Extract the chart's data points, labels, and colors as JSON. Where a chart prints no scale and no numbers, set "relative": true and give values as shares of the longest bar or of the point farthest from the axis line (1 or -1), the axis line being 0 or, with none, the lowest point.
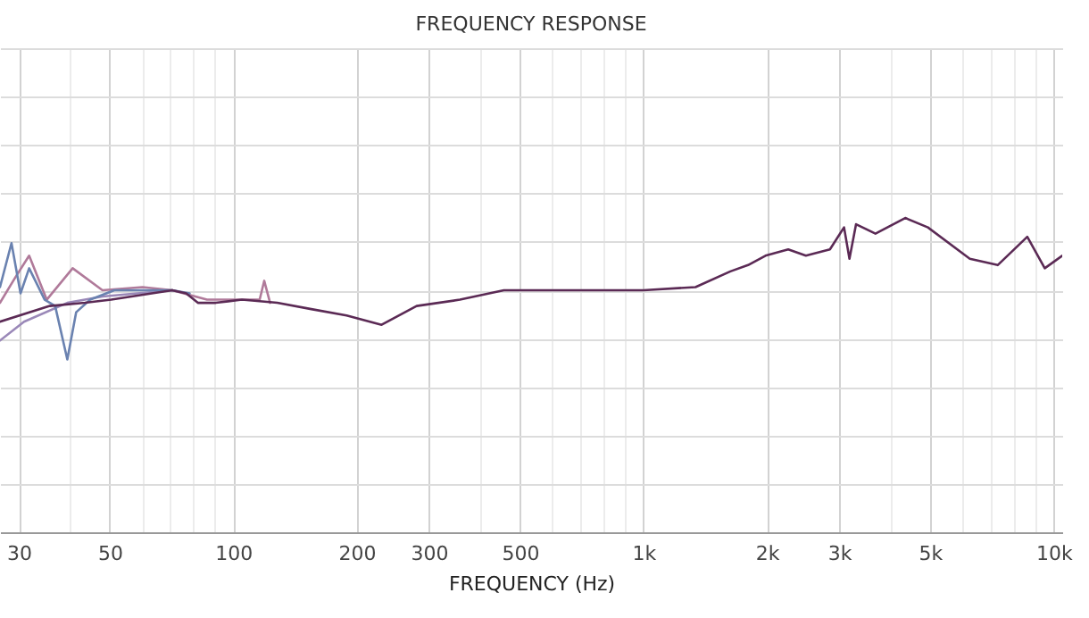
{
  "chart_data": {
    "type": "line",
    "title": "FREQUENCY RESPONSE",
    "xlabel": "FREQUENCY (Hz)",
    "relative": true,
    "log": "x",
    "grid": true,
    "legend": false,
    "xlim": [
      27,
      10500
    ],
    "xticks": [
      30,
      {
        "value": 40,
        "label": null
      },
      50,
      {
        "value": 60,
        "label": null
      },
      {
        "value": 70,
        "label": null
      },
      {
        "value": 80,
        "label": null
      },
      {
        "value": 90,
        "label": null
      },
      100,
      200,
      300,
      {
        "value": 400,
        "label": null
      },
      500,
      {
        "value": 600,
        "label": null
      },
      {
        "value": 700,
        "label": null
      },
      {
        "value": 800,
        "label": null
      },
      {
        "value": 900,
        "label": null
      },
      {
        "value": 1000,
        "label": "1k"
      },
      {
        "value": 2000,
        "label": "2k"
      },
      {
        "value": 3000,
        "label": "3k"
      },
      {
        "value": 4000,
        "label": null
      },
      {
        "value": 5000,
        "label": "5k"
      },
      {
        "value": 6000,
        "label": null
      },
      {
        "value": 7000,
        "label": null
      },
      {
        "value": 8000,
        "label": null
      },
      {
        "value": 9000,
        "label": null
      },
      {
        "value": 10000,
        "label": "10k"
      }
    ],
    "series": [
      {
        "color": "#9a88b8",
        "x": [
          27,
          30.9,
          39.4,
          48,
          71
        ],
        "values": [
          0.61,
          0.67,
          0.73,
          0.75,
          0.77
        ]
      },
      {
        "color": "#b07a9a",
        "x": [
          27,
          29.4,
          31.8,
          35.1,
          40.6,
          48,
          60.1,
          71,
          86.3,
          116,
          119,
          123
        ],
        "values": [
          0.73,
          0.81,
          0.88,
          0.74,
          0.84,
          0.77,
          0.78,
          0.77,
          0.74,
          0.74,
          0.8,
          0.73
        ]
      },
      {
        "color": "#6a82b0",
        "x": [
          27,
          28.8,
          30.3,
          31.8,
          34.7,
          36.8,
          39.4,
          41.4,
          44.8,
          51.3,
          54.5,
          71,
          78.3
        ],
        "values": [
          0.78,
          0.92,
          0.76,
          0.84,
          0.74,
          0.72,
          0.55,
          0.7,
          0.74,
          0.77,
          0.77,
          0.77,
          0.76
        ]
      },
      {
        "color": "#5b2a55",
        "x": [
          27,
          35.7,
          43.5,
          50.4,
          71,
          76.8,
          82,
          90.7,
          105,
          128,
          155,
          189,
          230,
          280,
          357,
          457,
          745,
          1000,
          1340,
          1630,
          1800,
          1985,
          2255,
          2490,
          2850,
          3085,
          3180,
          3300,
          3680,
          4350,
          4940,
          6250,
          7310,
          8630,
          9520,
          10500
        ],
        "values": [
          0.67,
          0.72,
          0.73,
          0.74,
          0.77,
          0.76,
          0.73,
          0.73,
          0.74,
          0.73,
          0.71,
          0.69,
          0.66,
          0.72,
          0.74,
          0.77,
          0.77,
          0.77,
          0.78,
          0.83,
          0.85,
          0.88,
          0.9,
          0.88,
          0.9,
          0.97,
          0.87,
          0.98,
          0.95,
          1.0,
          0.97,
          0.87,
          0.85,
          0.94,
          0.84,
          0.88
        ]
      }
    ]
  }
}
